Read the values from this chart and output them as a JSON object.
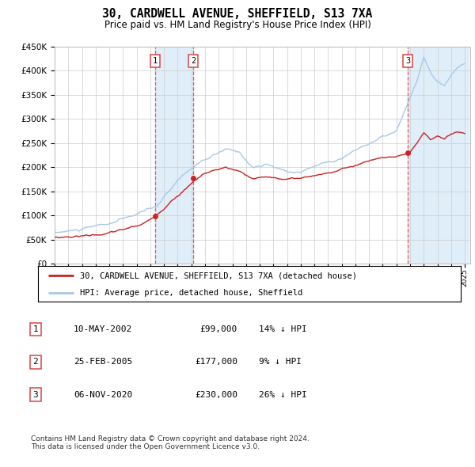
{
  "title": "30, CARDWELL AVENUE, SHEFFIELD, S13 7XA",
  "subtitle": "Price paid vs. HM Land Registry's House Price Index (HPI)",
  "ylim": [
    0,
    450000
  ],
  "yticks": [
    0,
    50000,
    100000,
    150000,
    200000,
    250000,
    300000,
    350000,
    400000,
    450000
  ],
  "ytick_labels": [
    "£0",
    "£50K",
    "£100K",
    "£150K",
    "£200K",
    "£250K",
    "£300K",
    "£350K",
    "£400K",
    "£450K"
  ],
  "hpi_color": "#a8c8e8",
  "price_color": "#cc2222",
  "transactions": [
    {
      "date_num": 2002.37,
      "price": 99000,
      "label": "1"
    },
    {
      "date_num": 2005.15,
      "price": 177000,
      "label": "2"
    },
    {
      "date_num": 2020.85,
      "price": 230000,
      "label": "3"
    }
  ],
  "transaction_dates_str": [
    "10-MAY-2002",
    "25-FEB-2005",
    "06-NOV-2020"
  ],
  "transaction_prices_str": [
    "£99,000",
    "£177,000",
    "£230,000"
  ],
  "transaction_pct": [
    "14% ↓ HPI",
    "9% ↓ HPI",
    "26% ↓ HPI"
  ],
  "legend_line1": "30, CARDWELL AVENUE, SHEFFIELD, S13 7XA (detached house)",
  "legend_line2": "HPI: Average price, detached house, Sheffield",
  "footnote": "Contains HM Land Registry data © Crown copyright and database right 2024.\nThis data is licensed under the Open Government Licence v3.0.",
  "background_color": "#ffffff",
  "grid_color": "#cccccc",
  "shade_color": "#d4e8f8",
  "vline_color": "#dd4444"
}
